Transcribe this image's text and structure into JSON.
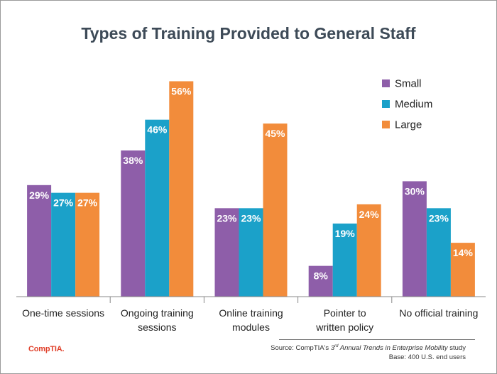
{
  "chart_data": {
    "type": "bar",
    "title": "Types of Training Provided to General Staff",
    "categories": [
      [
        "One-time sessions"
      ],
      [
        "Ongoing training",
        "sessions"
      ],
      [
        "Online training",
        "modules"
      ],
      [
        "Pointer to",
        "written policy"
      ],
      [
        "No official training"
      ]
    ],
    "series": [
      {
        "name": "Small",
        "color": "#8e5ea9",
        "values": [
          29,
          38,
          23,
          8,
          30
        ]
      },
      {
        "name": "Medium",
        "color": "#1ba1c9",
        "values": [
          27,
          46,
          23,
          19,
          23
        ]
      },
      {
        "name": "Large",
        "color": "#f28c3b",
        "values": [
          27,
          56,
          45,
          24,
          14
        ]
      }
    ],
    "value_suffix": "%",
    "ylim": [
      0,
      56
    ],
    "legend_position": "top-right",
    "xlabel": "",
    "ylabel": ""
  },
  "footer": {
    "brand": "CompTIA.",
    "source_prefix": "Source: CompTIA's ",
    "source_ordinal": "3",
    "source_sup": "rd",
    "source_title": " Annual Trends in Enterprise Mobility",
    "source_suffix": " study",
    "base": "Base: 400 U.S. end users"
  }
}
